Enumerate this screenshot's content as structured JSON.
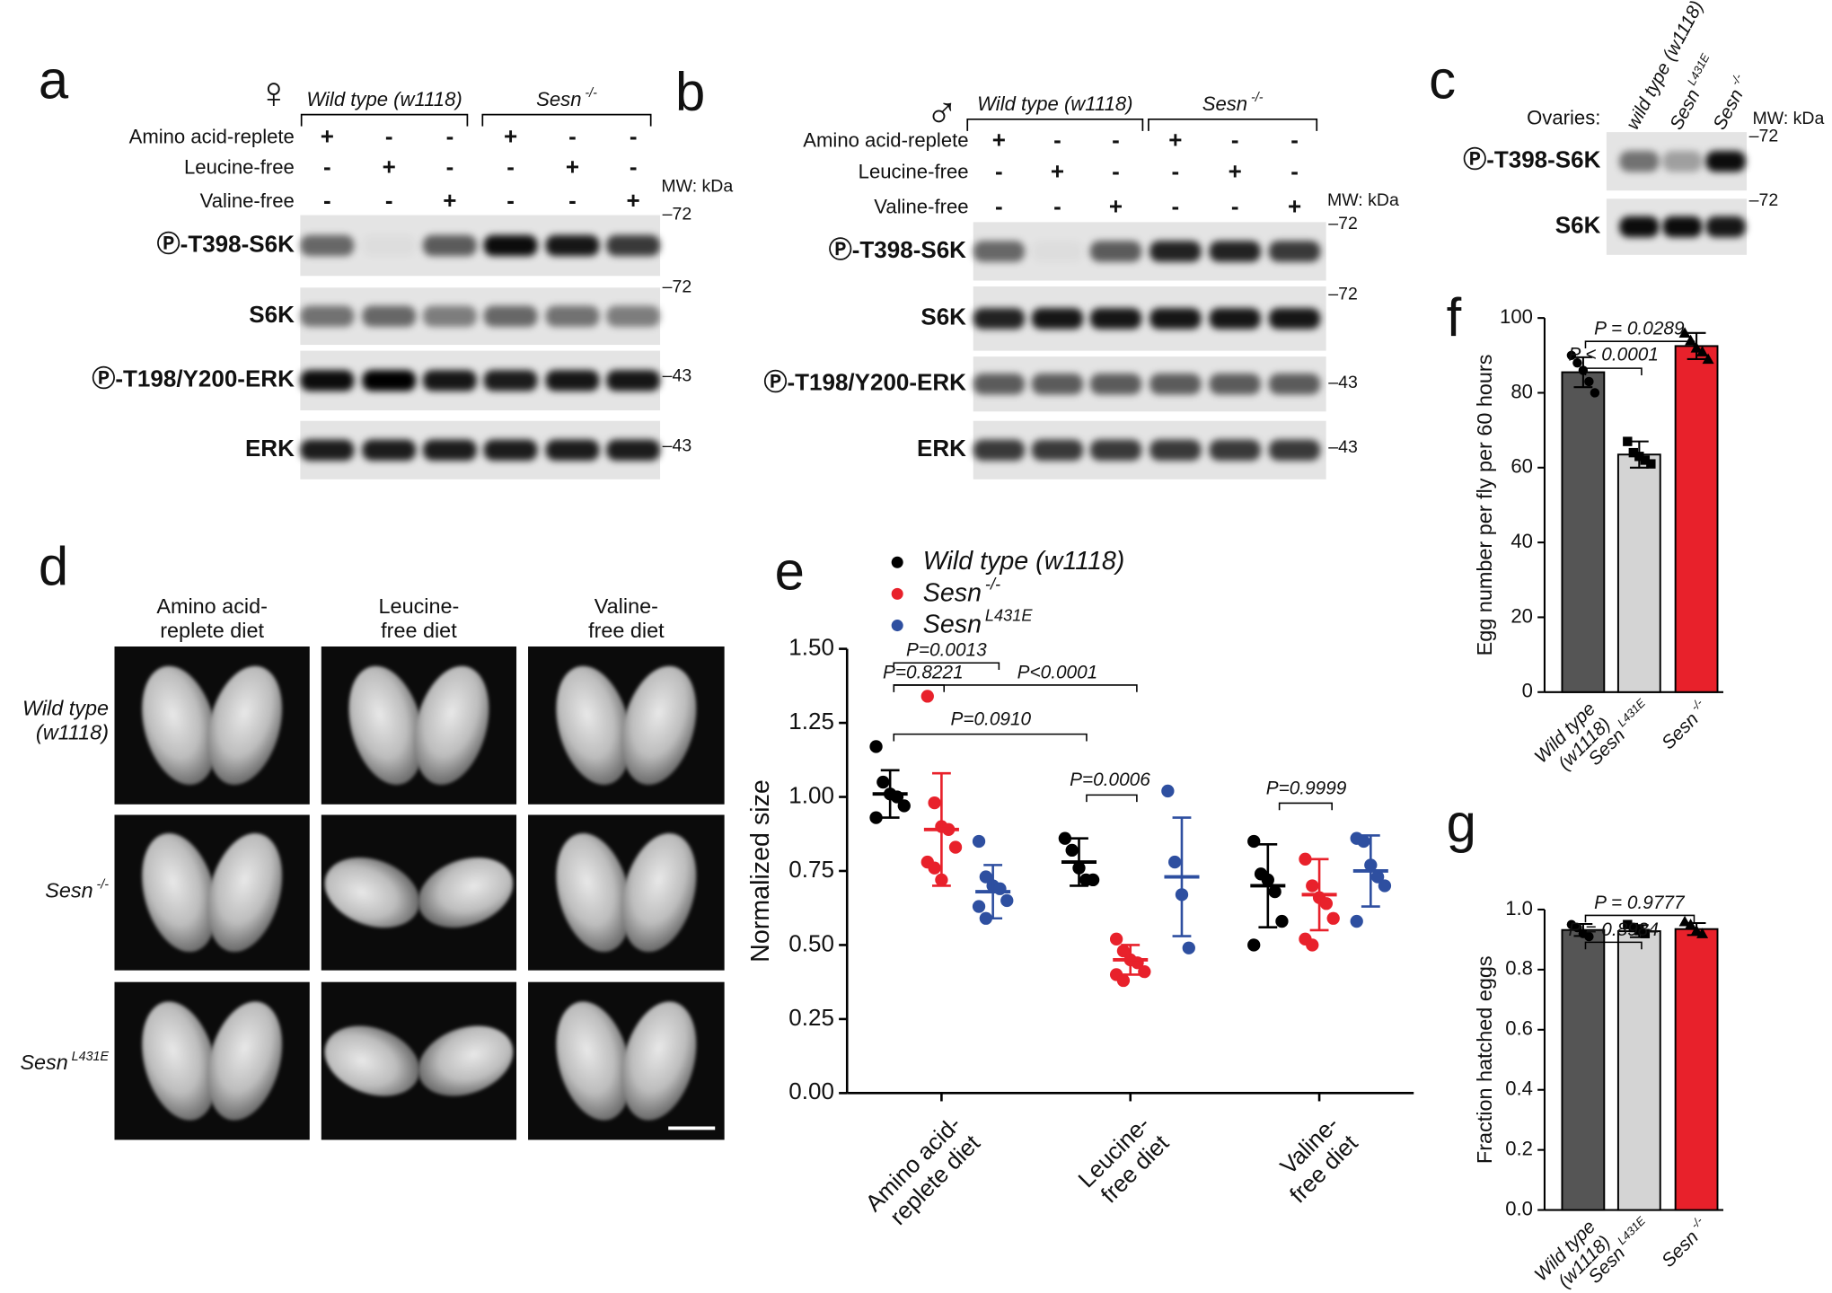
{
  "panel_a": {
    "label": "a",
    "sex": "♀",
    "groups": [
      {
        "name": "Wild type (w1118)"
      },
      {
        "name": "Sesn",
        "sup": "-/-"
      }
    ],
    "conditions": [
      {
        "name": "Amino acid-replete",
        "signs": [
          "+",
          "-",
          "-",
          "+",
          "-",
          "-"
        ]
      },
      {
        "name": "Leucine-free",
        "signs": [
          "-",
          "+",
          "-",
          "-",
          "+",
          "-"
        ]
      },
      {
        "name": "Valine-free",
        "signs": [
          "-",
          "-",
          "+",
          "-",
          "-",
          "+"
        ]
      }
    ],
    "mw_unit": "MW: kDa",
    "blots": [
      {
        "name": "Ⓟ-T398-S6K",
        "marker": "–72"
      },
      {
        "name": "S6K",
        "marker": "–72"
      },
      {
        "name": "Ⓟ-T198/Y200-ERK",
        "marker": "–43"
      },
      {
        "name": "ERK",
        "marker": "–43"
      }
    ]
  },
  "panel_b": {
    "label": "b",
    "sex": "♂",
    "groups": [
      {
        "name": "Wild type (w1118)"
      },
      {
        "name": "Sesn",
        "sup": "-/-"
      }
    ],
    "conditions": [
      {
        "name": "Amino acid-replete",
        "signs": [
          "+",
          "-",
          "-",
          "+",
          "-",
          "-"
        ]
      },
      {
        "name": "Leucine-free",
        "signs": [
          "-",
          "+",
          "-",
          "-",
          "+",
          "-"
        ]
      },
      {
        "name": "Valine-free",
        "signs": [
          "-",
          "-",
          "+",
          "-",
          "-",
          "+"
        ]
      }
    ],
    "mw_unit": "MW: kDa",
    "blots": [
      {
        "name": "Ⓟ-T398-S6K",
        "marker": "–72"
      },
      {
        "name": "S6K",
        "marker": "–72"
      },
      {
        "name": "Ⓟ-T198/Y200-ERK",
        "marker": "–43"
      },
      {
        "name": "ERK",
        "marker": "–43"
      }
    ]
  },
  "panel_c": {
    "label": "c",
    "row_title": "Ovaries:",
    "columns": [
      {
        "name": "wild type (w1118)"
      },
      {
        "name": "Sesn",
        "sup": "L431E"
      },
      {
        "name": "Sesn",
        "sup": "-/-"
      }
    ],
    "mw_unit": "MW: kDa",
    "blots": [
      {
        "name": "Ⓟ-T398-S6K",
        "marker": "–72"
      },
      {
        "name": "S6K",
        "marker": "–72"
      }
    ]
  },
  "panel_d": {
    "label": "d",
    "columns": [
      "Amino acid-\nreplete diet",
      "Leucine-\nfree diet",
      "Valine-\nfree diet"
    ],
    "rows": [
      {
        "name": "Wild type\n(w1118)"
      },
      {
        "name": "Sesn",
        "sup": "-/-"
      },
      {
        "name": "Sesn",
        "sup": "L431E"
      }
    ]
  },
  "chart_data": [
    {
      "type": "dot",
      "panel_label": "e",
      "y_label": "Normalized size",
      "categories": [
        "Amino acid-\nreplete diet",
        "Leucine-\nfree diet",
        "Valine-\nfree diet"
      ],
      "series": [
        {
          "name": "Wild type (w1118)",
          "color": "#000000",
          "values": [
            1.01,
            0.78,
            0.7
          ],
          "sd": [
            0.08,
            0.08,
            0.14
          ],
          "points": [
            [
              1.17,
              1.05,
              1.01,
              1.0,
              0.97,
              0.93
            ],
            [
              0.86,
              0.82,
              0.76,
              0.72,
              0.72
            ],
            [
              0.85,
              0.74,
              0.72,
              0.68,
              0.58,
              0.5
            ]
          ]
        },
        {
          "name": "Sesn",
          "name_sup": "-/-",
          "color": "#e8212b",
          "values": [
            0.89,
            0.45,
            0.67
          ],
          "sd": [
            0.19,
            0.05,
            0.12
          ],
          "points": [
            [
              1.34,
              0.98,
              0.9,
              0.89,
              0.83,
              0.78,
              0.76,
              0.72
            ],
            [
              0.52,
              0.48,
              0.45,
              0.44,
              0.41,
              0.4,
              0.38
            ],
            [
              0.79,
              0.7,
              0.66,
              0.64,
              0.59,
              0.52,
              0.5
            ]
          ]
        },
        {
          "name": "Sesn",
          "name_sup": "L431E",
          "color": "#2e4fa0",
          "values": [
            0.68,
            0.73,
            0.75
          ],
          "sd": [
            0.09,
            0.2,
            0.12
          ],
          "points": [
            [
              0.85,
              0.73,
              0.7,
              0.69,
              0.65,
              0.63,
              0.59
            ],
            [
              1.02,
              0.78,
              0.67,
              0.49
            ],
            [
              0.86,
              0.85,
              0.77,
              0.73,
              0.7,
              0.58
            ]
          ]
        }
      ],
      "ylim": [
        0,
        1.5
      ],
      "yticks": [
        {
          "value": 0,
          "label": "0.00"
        },
        0.25,
        {
          "value": 0.5,
          "label": "0.50"
        },
        0.75,
        {
          "value": 1,
          "label": "1.00"
        },
        1.25,
        {
          "value": 1.5,
          "label": "1.50"
        }
      ],
      "annotations": [
        "P=0.0013",
        "P=0.8221",
        "P<0.0001",
        "P=0.0910",
        "P=0.0006",
        "P=0.9999"
      ]
    },
    {
      "type": "bar",
      "panel_label": "f",
      "y_label": "Egg number per fly per 60 hours",
      "categories": [
        "Wild type\n(w1118)",
        "Sesn",
        "Sesn"
      ],
      "category_sups": [
        null,
        "L431E",
        "-/-"
      ],
      "values": [
        85.5,
        63.5,
        92.5
      ],
      "errors": [
        4,
        3.5,
        3.5
      ],
      "points": [
        [
          90,
          88,
          86,
          83,
          80
        ],
        [
          67,
          64,
          63,
          62,
          61
        ],
        [
          96,
          94,
          92,
          91,
          89
        ]
      ],
      "colors": [
        "#555555",
        "#d4d4d4",
        "#e8212b"
      ],
      "ylim": [
        0,
        100
      ],
      "yticks": [
        0,
        20,
        40,
        60,
        80,
        100
      ],
      "annotations": [
        "P < 0.0001",
        "P = 0.0289"
      ]
    },
    {
      "type": "bar",
      "panel_label": "g",
      "y_label": "Fraction hatched eggs",
      "categories": [
        "Wild type\n(w1118)",
        "Sesn",
        "Sesn"
      ],
      "category_sups": [
        null,
        "L431E",
        "-/-"
      ],
      "values": [
        0.932,
        0.928,
        0.935
      ],
      "errors": [
        0.02,
        0.02,
        0.02
      ],
      "points": [
        [
          0.95,
          0.94,
          0.92,
          0.91
        ],
        [
          0.95,
          0.94,
          0.93,
          0.92
        ],
        [
          0.96,
          0.95,
          0.93,
          0.92
        ]
      ],
      "colors": [
        "#555555",
        "#d4d4d4",
        "#e8212b"
      ],
      "ylim": [
        0,
        1
      ],
      "yticks": [
        {
          "value": 0,
          "label": "0.0"
        },
        0.2,
        0.4,
        0.6,
        0.8,
        {
          "value": 1,
          "label": "1.0"
        }
      ],
      "annotations": [
        "P = 0.8984",
        "P = 0.9777"
      ]
    }
  ]
}
